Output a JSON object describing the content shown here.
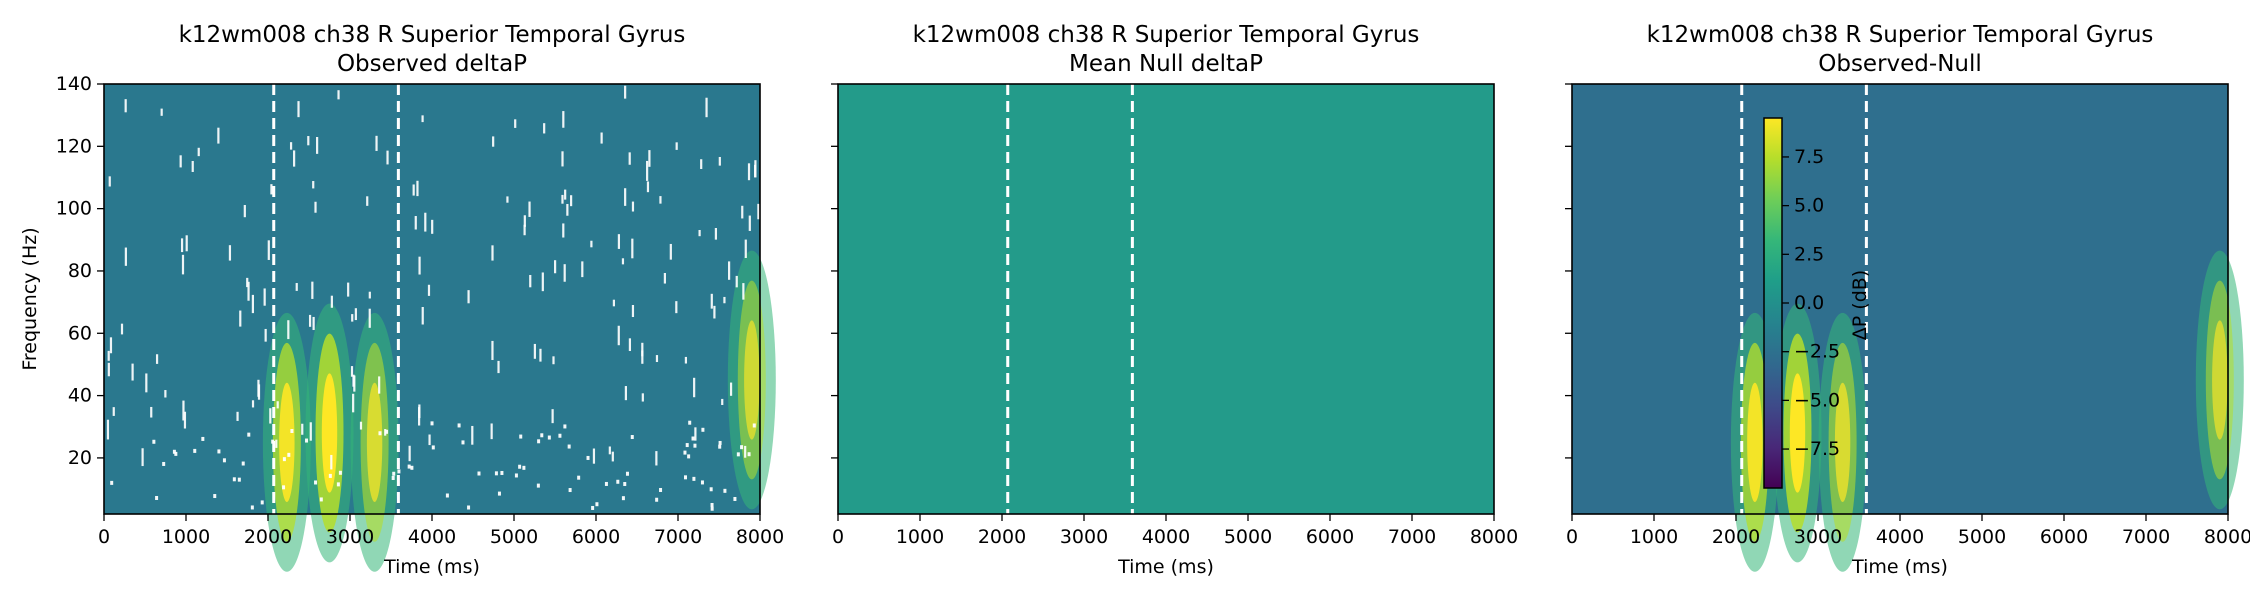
{
  "chart_data": [
    {
      "type": "heatmap",
      "title_line1": "k12wm008 ch38 R Superior Temporal Gyrus",
      "title_line2": "Observed deltaP",
      "xlabel": "Time (ms)",
      "ylabel": "Frequency (Hz)",
      "xlim": [
        0,
        8000
      ],
      "ylim": [
        2,
        140
      ],
      "xticks": [
        "0",
        "1000",
        "2000",
        "3000",
        "4000",
        "5000",
        "6000",
        "7000",
        "8000"
      ],
      "yticks": [
        "20",
        "40",
        "60",
        "80",
        "100",
        "120",
        "140"
      ],
      "event_markers_ms": [
        2070,
        3590
      ],
      "blobs": [
        {
          "t": 2230,
          "f": 25,
          "v": 0.9
        },
        {
          "t": 2750,
          "f": 28,
          "v": 1.0
        },
        {
          "t": 3300,
          "f": 25,
          "v": 0.7
        },
        {
          "t": 7900,
          "f": 45,
          "v": 0.65
        }
      ],
      "masked_regions": "white pixels where values are not significant"
    },
    {
      "type": "heatmap",
      "title_line1": "k12wm008 ch38 R Superior Temporal Gyrus",
      "title_line2": "Mean Null deltaP",
      "xlabel": "Time (ms)",
      "xlim": [
        0,
        8000
      ],
      "ylim": [
        2,
        140
      ],
      "xticks": [
        "0",
        "1000",
        "2000",
        "3000",
        "4000",
        "5000",
        "6000",
        "7000",
        "8000"
      ],
      "event_markers_ms": [
        2070,
        3590
      ],
      "uniform_value": 0
    },
    {
      "type": "heatmap",
      "title_line1": "k12wm008 ch38 R Superior Temporal Gyrus",
      "title_line2": "Observed-Null",
      "xlabel": "Time (ms)",
      "xlim": [
        0,
        8000
      ],
      "ylim": [
        2,
        140
      ],
      "xticks": [
        "0",
        "1000",
        "2000",
        "3000",
        "4000",
        "5000",
        "6000",
        "7000",
        "8000"
      ],
      "event_markers_ms": [
        2070,
        3590
      ],
      "blobs": [
        {
          "t": 2230,
          "f": 25,
          "v": 0.9
        },
        {
          "t": 2750,
          "f": 28,
          "v": 1.0
        },
        {
          "t": 3300,
          "f": 25,
          "v": 0.7
        },
        {
          "t": 7900,
          "f": 45,
          "v": 0.65
        }
      ],
      "colorbar": {
        "label": "ΔP (dB)",
        "range": [
          -9.5,
          9.5
        ],
        "ticks": [
          "7.5",
          "5.0",
          "2.5",
          "0.0",
          "−2.5",
          "−5.0",
          "−7.5"
        ],
        "tick_values": [
          7.5,
          5.0,
          2.5,
          0.0,
          -2.5,
          -5.0,
          -7.5
        ],
        "colormap": "viridis"
      }
    }
  ]
}
